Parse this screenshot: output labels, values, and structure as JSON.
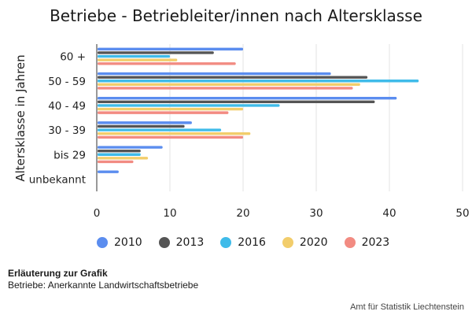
{
  "title": "Betriebe - Betriebleiter/innen nach Altersklasse",
  "note_heading": "Erläuterung zur Grafik",
  "note_text": "Betriebe: Anerkannte Landwirtschaftsbetriebe",
  "source": "Amt für Statistik Liechtenstein",
  "chart_data": {
    "type": "bar",
    "orientation": "horizontal",
    "title": "Betriebe - Betriebleiter/innen nach Altersklasse",
    "xlabel": "",
    "ylabel": "Altersklasse in Jahren",
    "categories": [
      "60 +",
      "50 - 59",
      "40 - 49",
      "30 - 39",
      "bis 29",
      "unbekannt"
    ],
    "xlim": [
      0,
      50
    ],
    "xticks": [
      0,
      10,
      20,
      30,
      40,
      50
    ],
    "grid": true,
    "legend_position": "bottom",
    "series": [
      {
        "name": "2010",
        "color": "#5b8def",
        "values": [
          20,
          32,
          41,
          13,
          9,
          3
        ]
      },
      {
        "name": "2013",
        "color": "#555555",
        "values": [
          16,
          37,
          38,
          12,
          6,
          0
        ]
      },
      {
        "name": "2016",
        "color": "#3fbbe9",
        "values": [
          10,
          44,
          25,
          17,
          6,
          0
        ]
      },
      {
        "name": "2020",
        "color": "#f2cd6b",
        "values": [
          11,
          36,
          20,
          21,
          7,
          0
        ]
      },
      {
        "name": "2023",
        "color": "#f28b82",
        "values": [
          19,
          35,
          18,
          20,
          5,
          0
        ]
      }
    ]
  }
}
